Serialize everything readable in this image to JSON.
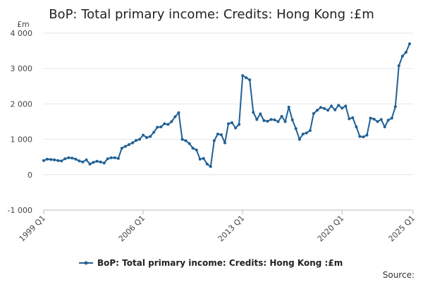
{
  "chart_data": {
    "type": "line",
    "title": "BoP: Total primary income: Credits: Hong Kong :£m",
    "ylabel": "£m",
    "xlabel": "",
    "ylim": [
      -1000,
      4000
    ],
    "yticks": [
      4000,
      3000,
      2000,
      1000,
      0,
      -1000
    ],
    "ytick_labels": [
      "4 000",
      "3 000",
      "2 000",
      "1 000",
      "0",
      "-1 000"
    ],
    "xlim": [
      "1999 Q1",
      "2025 Q1"
    ],
    "xticks": [
      "1999 Q1",
      "2006 Q1",
      "2013 Q1",
      "2020 Q1",
      "2025 Q1"
    ],
    "grid": true,
    "legend_position": "bottom",
    "series": [
      {
        "name": "BoP: Total primary income: Credits: Hong Kong :£m",
        "color": "#206095",
        "start": "1999 Q1",
        "values": [
          400,
          440,
          430,
          420,
          400,
          390,
          450,
          480,
          470,
          440,
          390,
          360,
          420,
          300,
          350,
          380,
          360,
          330,
          450,
          480,
          480,
          460,
          750,
          800,
          850,
          900,
          970,
          1000,
          1120,
          1050,
          1080,
          1200,
          1340,
          1350,
          1440,
          1420,
          1500,
          1640,
          1750,
          1000,
          960,
          880,
          750,
          700,
          440,
          460,
          300,
          230,
          960,
          1150,
          1130,
          900,
          1440,
          1470,
          1320,
          1420,
          2800,
          2740,
          2680,
          1760,
          1560,
          1720,
          1530,
          1510,
          1560,
          1550,
          1500,
          1650,
          1500,
          1910,
          1550,
          1300,
          1000,
          1150,
          1180,
          1250,
          1730,
          1820,
          1900,
          1870,
          1820,
          1940,
          1830,
          1960,
          1880,
          1940,
          1580,
          1610,
          1350,
          1080,
          1070,
          1120,
          1600,
          1570,
          1500,
          1560,
          1350,
          1540,
          1600,
          1920,
          3080,
          3350,
          3460,
          3700
        ]
      }
    ]
  },
  "legend": {
    "label": "BoP: Total primary income: Credits: Hong Kong :£m"
  },
  "source_label": "Source:"
}
